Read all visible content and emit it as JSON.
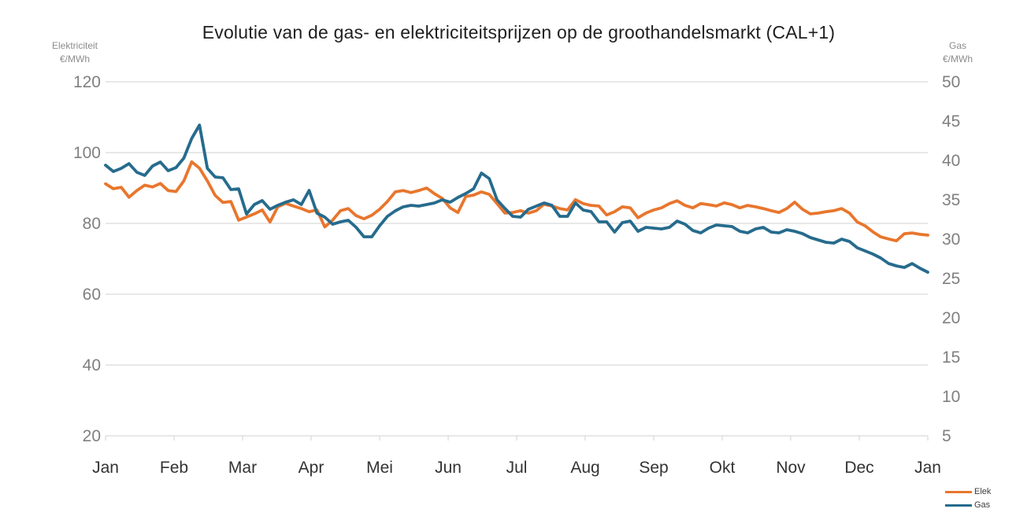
{
  "title": "Evolutie van de gas- en elektriciteitsprijzen op de groothandelsmarkt (CAL+1)",
  "left_axis_header": {
    "line1": "Elektriciteit",
    "line2": "€/MWh"
  },
  "right_axis_header": {
    "line1": "Gas",
    "line2": "€/MWh"
  },
  "legend": {
    "items": [
      {
        "label": "Elek"
      },
      {
        "label": "Gas"
      }
    ]
  },
  "colors": {
    "elek_line": "#E8762D",
    "gas_line": "#266B8D",
    "gridline": "#DBDBDB",
    "tick_label": "#7F7F7F",
    "month_label": "#333333",
    "title_text": "#1F1F1F"
  },
  "chart_data": {
    "type": "line",
    "title": "Evolutie van de gas- en elektriciteitsprijzen op de groothandelsmarkt (CAL+1)",
    "x_tick_labels": [
      "Jan",
      "Feb",
      "Mar",
      "Apr",
      "Mei",
      "Jun",
      "Jul",
      "Aug",
      "Sep",
      "Okt",
      "Nov",
      "Dec",
      "Jan"
    ],
    "grid": "horizontal-only",
    "legend_position": "bottom-right",
    "left_axis": {
      "label": "Elektriciteit",
      "unit": "€/MWh",
      "min": 20,
      "max": 120,
      "ticks": [
        120,
        100,
        80,
        60,
        40,
        20
      ]
    },
    "right_axis": {
      "label": "Gas",
      "unit": "€/MWh",
      "min": 5,
      "max": 50,
      "ticks": [
        50,
        45,
        40,
        35,
        30,
        25,
        20,
        15,
        10,
        5
      ]
    },
    "series": [
      {
        "name": "Elek",
        "axis": "left",
        "color": "#E8762D",
        "values": [
          91.2,
          89.8,
          90.2,
          87.4,
          89.3,
          90.8,
          90.3,
          91.3,
          89.3,
          89.0,
          92.0,
          97.4,
          95.6,
          92.0,
          87.9,
          85.9,
          86.2,
          80.9,
          81.8,
          82.7,
          83.8,
          80.4,
          84.7,
          85.7,
          84.9,
          84.2,
          83.3,
          83.8,
          79.0,
          80.9,
          83.6,
          84.2,
          82.2,
          81.3,
          82.3,
          84.0,
          86.2,
          88.9,
          89.3,
          88.7,
          89.3,
          90.0,
          88.4,
          87.1,
          84.4,
          83.1,
          87.6,
          88.0,
          88.9,
          88.2,
          85.6,
          82.9,
          83.1,
          83.6,
          82.9,
          83.6,
          85.4,
          84.9,
          84.2,
          83.8,
          86.7,
          85.6,
          85.1,
          84.9,
          82.4,
          83.3,
          84.7,
          84.4,
          81.6,
          82.9,
          83.8,
          84.4,
          85.6,
          86.4,
          85.1,
          84.4,
          85.6,
          85.3,
          84.9,
          85.8,
          85.3,
          84.4,
          85.1,
          84.7,
          84.2,
          83.6,
          83.1,
          84.2,
          86.0,
          84.0,
          82.7,
          82.9,
          83.3,
          83.6,
          84.2,
          82.9,
          80.4,
          79.3,
          77.6,
          76.2,
          75.6,
          75.1,
          77.1,
          77.3,
          76.9,
          76.7
        ]
      },
      {
        "name": "Gas",
        "axis": "right",
        "color": "#266B8D",
        "values": [
          39.4,
          38.6,
          39.0,
          39.6,
          38.5,
          38.1,
          39.3,
          39.8,
          38.7,
          39.1,
          40.3,
          42.8,
          44.5,
          39.0,
          37.9,
          37.8,
          36.3,
          36.4,
          33.2,
          34.4,
          34.9,
          33.8,
          34.3,
          34.7,
          35.0,
          34.4,
          36.2,
          33.3,
          32.8,
          31.9,
          32.2,
          32.4,
          31.5,
          30.3,
          30.3,
          31.7,
          32.9,
          33.6,
          34.1,
          34.3,
          34.2,
          34.4,
          34.6,
          35.0,
          34.7,
          35.3,
          35.8,
          36.4,
          38.4,
          37.7,
          35.0,
          33.9,
          32.9,
          32.8,
          33.8,
          34.2,
          34.6,
          34.3,
          32.9,
          32.9,
          34.6,
          33.7,
          33.5,
          32.2,
          32.2,
          30.9,
          32.1,
          32.3,
          31.0,
          31.5,
          31.4,
          31.3,
          31.5,
          32.3,
          31.9,
          31.1,
          30.8,
          31.4,
          31.8,
          31.7,
          31.6,
          31.0,
          30.8,
          31.3,
          31.5,
          30.9,
          30.8,
          31.2,
          31.0,
          30.7,
          30.2,
          29.9,
          29.6,
          29.5,
          30.0,
          29.7,
          28.9,
          28.5,
          28.1,
          27.6,
          26.9,
          26.6,
          26.4,
          26.9,
          26.3,
          25.8
        ]
      }
    ]
  }
}
